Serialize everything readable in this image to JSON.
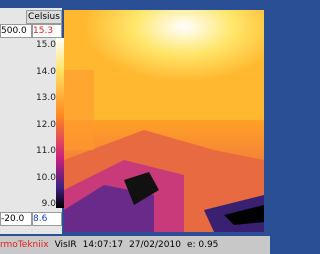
{
  "scale": {
    "unit": "Celsius",
    "max": "500.0",
    "current_max": "15.3",
    "ticks": [
      "15.0",
      "14.0",
      "13.0",
      "12.0",
      "11.0",
      "10.0",
      "9.0"
    ],
    "min": "-20.0",
    "current_min": "8.6"
  },
  "status_bar": {
    "brand": "rmoTekniix",
    "mode": "VisIR",
    "time": "14:07:17",
    "date": "27/02/2010",
    "emissivity": "e: 0.95"
  }
}
